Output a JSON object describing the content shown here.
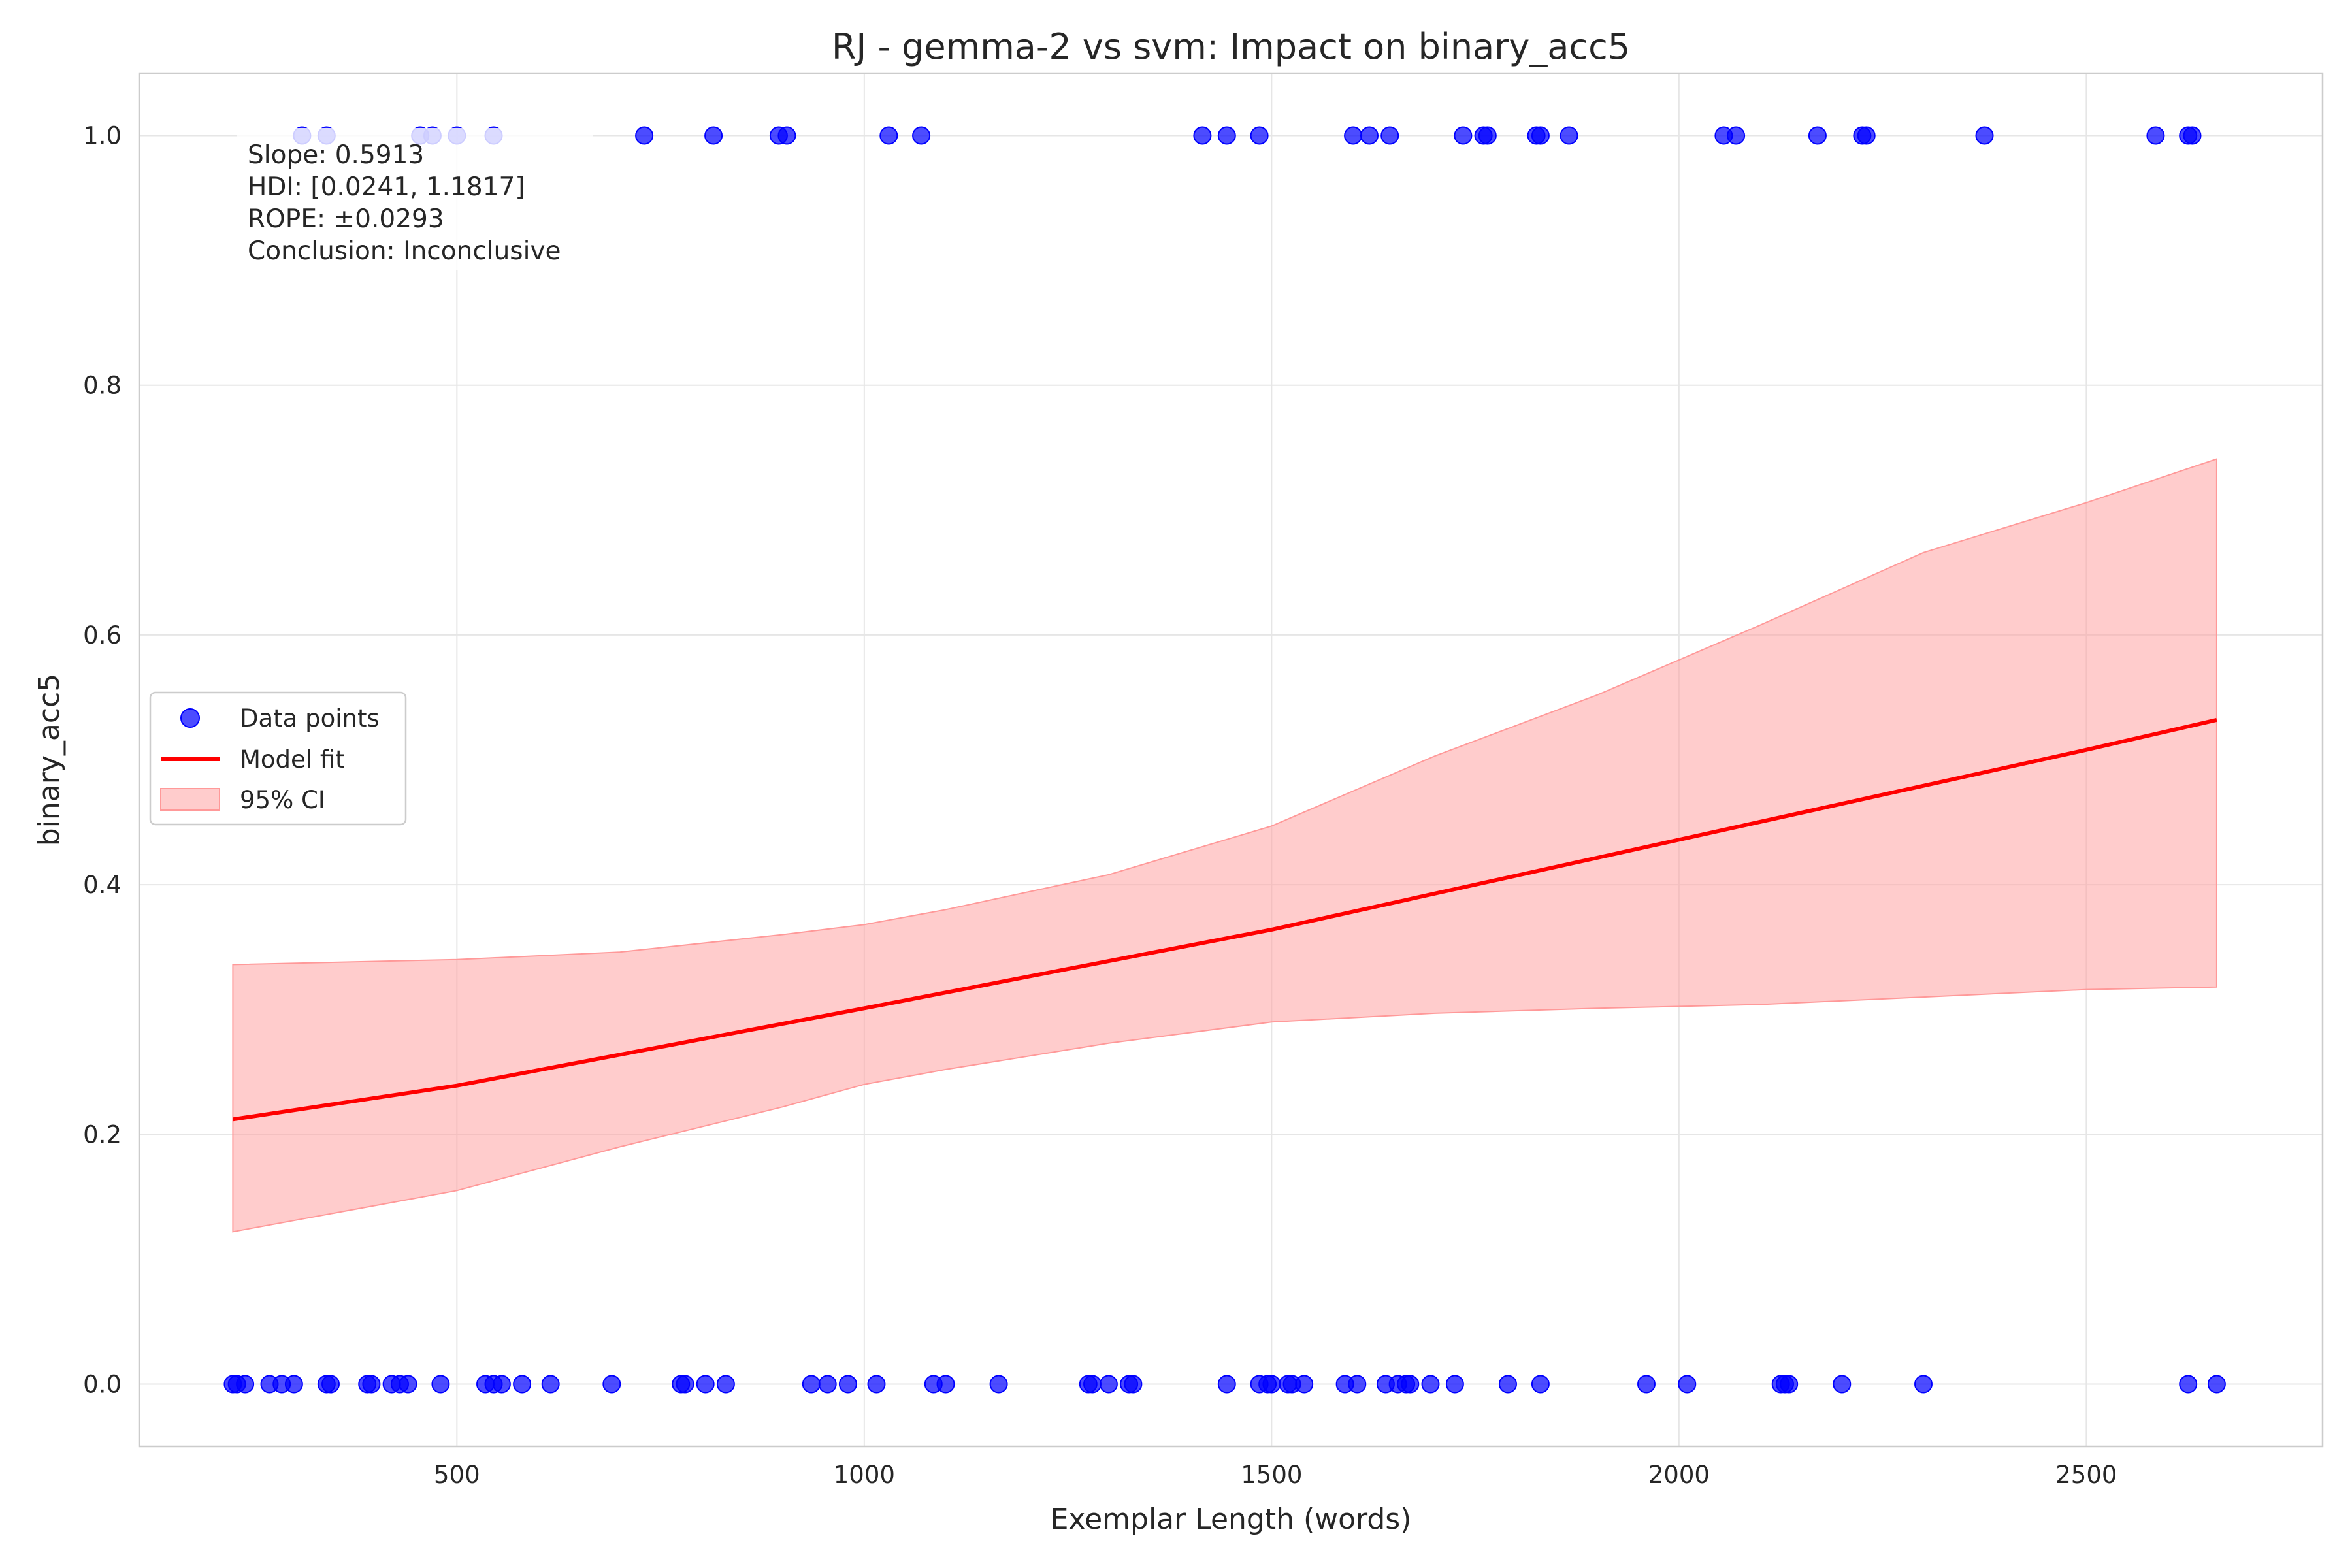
{
  "chart_data": {
    "type": "scatter",
    "title": "RJ - gemma-2 vs svm: Impact on binary_acc5",
    "xlabel": "Exemplar Length (words)",
    "ylabel": "binary_acc5",
    "xlim": [
      110,
      2790
    ],
    "ylim": [
      -0.05,
      1.05
    ],
    "x_ticks": [
      500,
      1000,
      1500,
      2000,
      2500
    ],
    "y_ticks": [
      0.0,
      0.2,
      0.4,
      0.6,
      0.8,
      1.0
    ],
    "x_tick_labels": [
      "500",
      "1000",
      "1500",
      "2000",
      "2500"
    ],
    "y_tick_labels": [
      "0.0",
      "0.2",
      "0.4",
      "0.6",
      "0.8",
      "1.0"
    ],
    "grid": true,
    "legend_position": "center-left",
    "legend": [
      "Data points",
      "Model fit",
      "95% CI"
    ],
    "colors": {
      "points": "#0000ff",
      "fit": "#ff0000",
      "ci": "#ff9999"
    },
    "series": [
      {
        "name": "Data points",
        "type": "scatter",
        "points": [
          [
            310,
            1
          ],
          [
            340,
            1
          ],
          [
            455,
            1
          ],
          [
            470,
            1
          ],
          [
            500,
            1
          ],
          [
            545,
            1
          ],
          [
            730,
            1
          ],
          [
            815,
            1
          ],
          [
            895,
            1
          ],
          [
            905,
            1
          ],
          [
            1030,
            1
          ],
          [
            1070,
            1
          ],
          [
            1415,
            1
          ],
          [
            1445,
            1
          ],
          [
            1485,
            1
          ],
          [
            1600,
            1
          ],
          [
            1620,
            1
          ],
          [
            1645,
            1
          ],
          [
            1735,
            1
          ],
          [
            1760,
            1
          ],
          [
            1765,
            1
          ],
          [
            1825,
            1
          ],
          [
            1830,
            1
          ],
          [
            1865,
            1
          ],
          [
            2055,
            1
          ],
          [
            2070,
            1
          ],
          [
            2170,
            1
          ],
          [
            2225,
            1
          ],
          [
            2230,
            1
          ],
          [
            2375,
            1
          ],
          [
            2585,
            1
          ],
          [
            2625,
            1
          ],
          [
            2630,
            1
          ],
          [
            225,
            0
          ],
          [
            230,
            0
          ],
          [
            240,
            0
          ],
          [
            270,
            0
          ],
          [
            285,
            0
          ],
          [
            300,
            0
          ],
          [
            340,
            0
          ],
          [
            345,
            0
          ],
          [
            390,
            0
          ],
          [
            395,
            0
          ],
          [
            420,
            0
          ],
          [
            430,
            0
          ],
          [
            440,
            0
          ],
          [
            480,
            0
          ],
          [
            535,
            0
          ],
          [
            545,
            0
          ],
          [
            555,
            0
          ],
          [
            580,
            0
          ],
          [
            615,
            0
          ],
          [
            690,
            0
          ],
          [
            775,
            0
          ],
          [
            780,
            0
          ],
          [
            805,
            0
          ],
          [
            830,
            0
          ],
          [
            935,
            0
          ],
          [
            955,
            0
          ],
          [
            980,
            0
          ],
          [
            1015,
            0
          ],
          [
            1085,
            0
          ],
          [
            1100,
            0
          ],
          [
            1165,
            0
          ],
          [
            1275,
            0
          ],
          [
            1280,
            0
          ],
          [
            1300,
            0
          ],
          [
            1325,
            0
          ],
          [
            1330,
            0
          ],
          [
            1445,
            0
          ],
          [
            1485,
            0
          ],
          [
            1495,
            0
          ],
          [
            1500,
            0
          ],
          [
            1520,
            0
          ],
          [
            1525,
            0
          ],
          [
            1540,
            0
          ],
          [
            1590,
            0
          ],
          [
            1605,
            0
          ],
          [
            1640,
            0
          ],
          [
            1655,
            0
          ],
          [
            1665,
            0
          ],
          [
            1670,
            0
          ],
          [
            1695,
            0
          ],
          [
            1725,
            0
          ],
          [
            1790,
            0
          ],
          [
            1830,
            0
          ],
          [
            1960,
            0
          ],
          [
            2010,
            0
          ],
          [
            2125,
            0
          ],
          [
            2130,
            0
          ],
          [
            2135,
            0
          ],
          [
            2200,
            0
          ],
          [
            2300,
            0
          ],
          [
            2625,
            0
          ],
          [
            2660,
            0
          ]
        ]
      },
      {
        "name": "Model fit",
        "type": "line",
        "points": [
          [
            225,
            0.212
          ],
          [
            500,
            0.239
          ],
          [
            1000,
            0.301
          ],
          [
            1500,
            0.364
          ],
          [
            2000,
            0.436
          ],
          [
            2500,
            0.508
          ],
          [
            2660,
            0.532
          ]
        ]
      },
      {
        "name": "95% CI",
        "type": "area",
        "x": [
          225,
          500,
          700,
          900,
          1000,
          1100,
          1300,
          1500,
          1700,
          1900,
          2100,
          2300,
          2500,
          2660
        ],
        "lower": [
          0.122,
          0.155,
          0.19,
          0.222,
          0.24,
          0.252,
          0.273,
          0.29,
          0.297,
          0.301,
          0.304,
          0.31,
          0.316,
          0.318
        ],
        "upper": [
          0.336,
          0.34,
          0.346,
          0.36,
          0.368,
          0.38,
          0.408,
          0.447,
          0.503,
          0.552,
          0.608,
          0.666,
          0.706,
          0.741
        ]
      }
    ],
    "annotation": [
      "Slope: 0.5913",
      "HDI: [0.0241, 1.1817]",
      "ROPE: ±0.0293",
      "Conclusion: Inconclusive"
    ]
  }
}
